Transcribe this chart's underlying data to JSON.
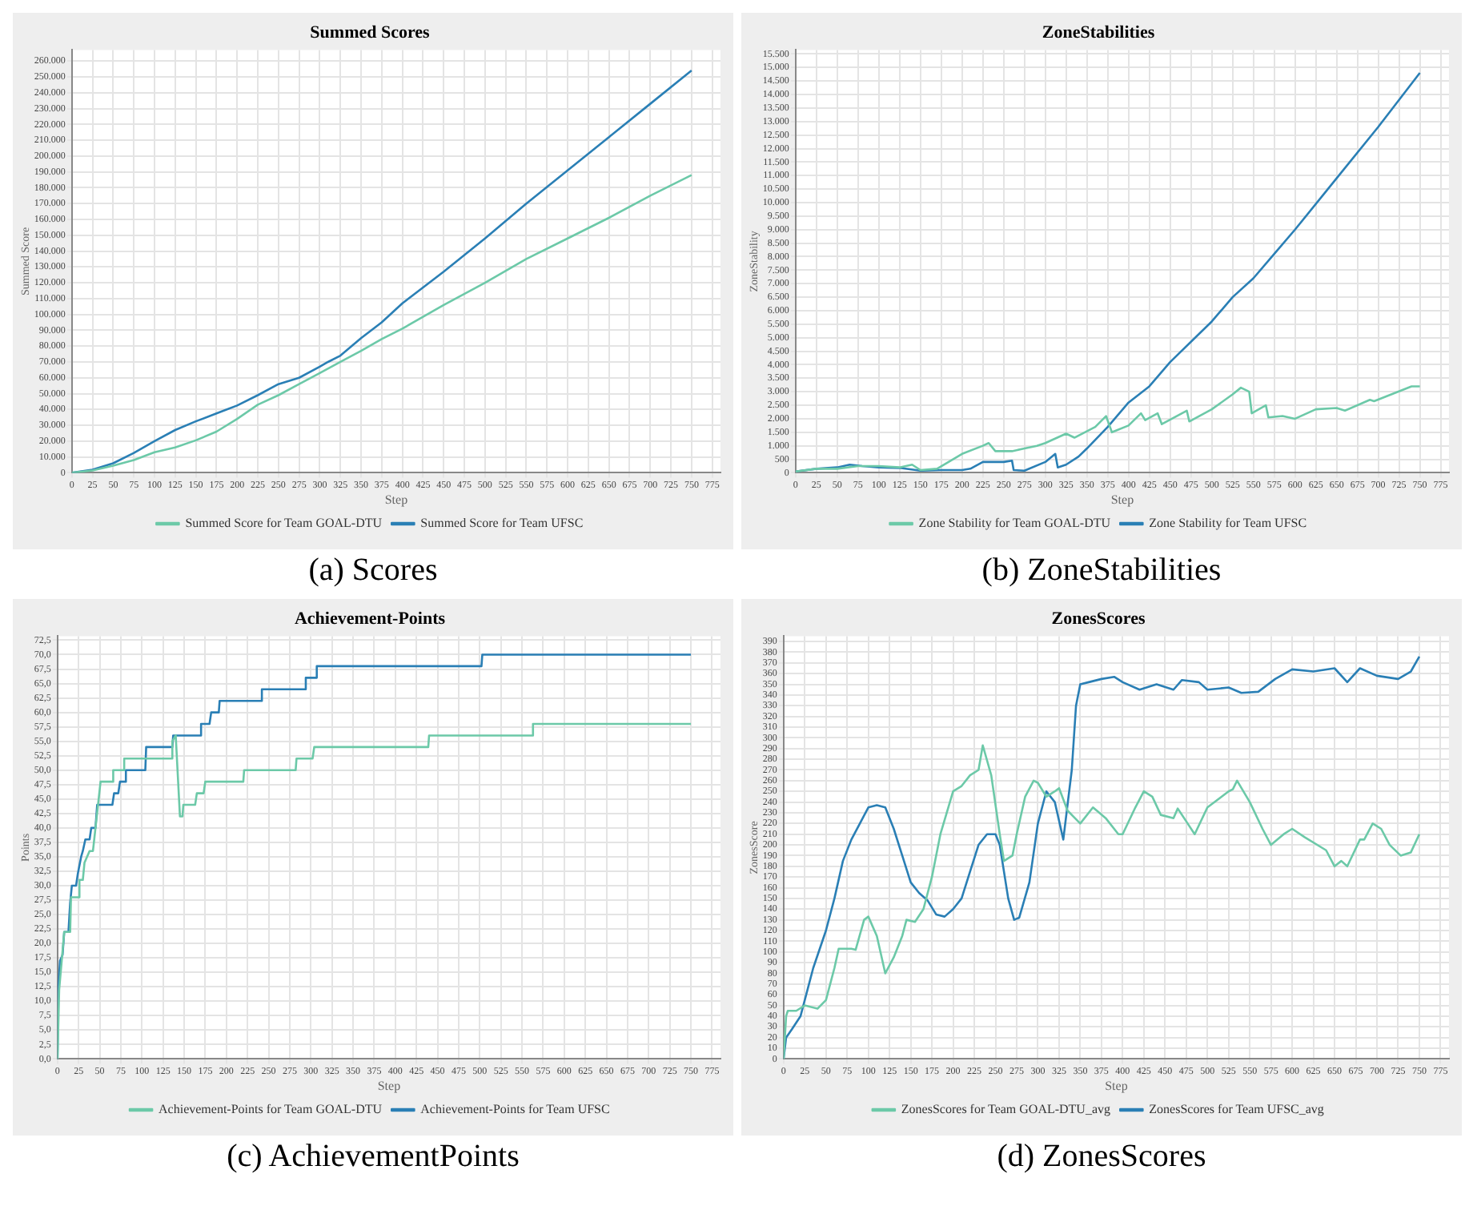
{
  "chart_data": [
    {
      "type": "line",
      "title": "Summed Scores",
      "xlabel": "Step",
      "ylabel": "Summed Score",
      "legend": "bottom",
      "grid": true,
      "annotations": [
        "(a) Scores"
      ],
      "xlim": [
        0,
        785
      ],
      "xticks": [
        0,
        25,
        50,
        75,
        100,
        125,
        150,
        175,
        200,
        225,
        250,
        275,
        300,
        325,
        350,
        375,
        400,
        425,
        450,
        475,
        500,
        525,
        550,
        575,
        600,
        625,
        650,
        675,
        700,
        725,
        750,
        775
      ],
      "ylim": [
        0,
        267000
      ],
      "yticks": [
        0,
        {
          "value": 10000,
          "label": "10.000"
        },
        {
          "value": 20000,
          "label": "20.000"
        },
        {
          "value": 30000,
          "label": "30.000"
        },
        {
          "value": 40000,
          "label": "40.000"
        },
        {
          "value": 50000,
          "label": "50.000"
        },
        {
          "value": 60000,
          "label": "60.000"
        },
        {
          "value": 70000,
          "label": "70.000"
        },
        {
          "value": 80000,
          "label": "80.000"
        },
        {
          "value": 90000,
          "label": "90.000"
        },
        {
          "value": 100000,
          "label": "100.000"
        },
        {
          "value": 110000,
          "label": "110.000"
        },
        {
          "value": 120000,
          "label": "120.000"
        },
        {
          "value": 130000,
          "label": "130.000"
        },
        {
          "value": 140000,
          "label": "140.000"
        },
        {
          "value": 150000,
          "label": "150.000"
        },
        {
          "value": 160000,
          "label": "160.000"
        },
        {
          "value": 170000,
          "label": "170.000"
        },
        {
          "value": 180000,
          "label": "180.000"
        },
        {
          "value": 190000,
          "label": "190.000"
        },
        {
          "value": 200000,
          "label": "200.000"
        },
        {
          "value": 210000,
          "label": "210.000"
        },
        {
          "value": 220000,
          "label": "220.000"
        },
        {
          "value": 230000,
          "label": "230.000"
        },
        {
          "value": 240000,
          "label": "240.000"
        },
        {
          "value": 250000,
          "label": "250.000"
        },
        {
          "value": 260000,
          "label": "260.000"
        }
      ],
      "series": [
        {
          "name": "Summed Score for Team GOAL-DTU",
          "color": "#6cc9a8",
          "x": [
            0,
            25,
            50,
            75,
            100,
            125,
            150,
            175,
            200,
            225,
            250,
            275,
            300,
            325,
            350,
            375,
            400,
            450,
            500,
            550,
            600,
            650,
            700,
            750
          ],
          "values": [
            0,
            1500,
            4500,
            8000,
            13000,
            16000,
            20500,
            26000,
            34000,
            43000,
            49000,
            56000,
            63000,
            70000,
            77000,
            84500,
            91000,
            106000,
            120000,
            135000,
            148000,
            161000,
            175000,
            188000
          ]
        },
        {
          "name": "Summed Score for Team UFSC",
          "color": "#2a7fb5",
          "x": [
            0,
            25,
            50,
            75,
            100,
            125,
            150,
            175,
            200,
            225,
            250,
            275,
            300,
            310,
            325,
            350,
            375,
            400,
            450,
            500,
            550,
            600,
            650,
            700,
            750
          ],
          "values": [
            0,
            2000,
            6000,
            12500,
            20000,
            27000,
            32500,
            37500,
            42500,
            49000,
            56000,
            60000,
            67000,
            70000,
            74000,
            85000,
            95000,
            107000,
            127000,
            148000,
            170000,
            191000,
            212000,
            233000,
            254000
          ]
        }
      ]
    },
    {
      "type": "line",
      "title": "ZoneStabilities",
      "xlabel": "Step",
      "ylabel": "ZoneStability",
      "legend": "bottom",
      "grid": true,
      "annotations": [
        "(b) ZoneStabilities"
      ],
      "xlim": [
        0,
        785
      ],
      "xticks": [
        0,
        25,
        50,
        75,
        100,
        125,
        150,
        175,
        200,
        225,
        250,
        275,
        300,
        325,
        350,
        375,
        400,
        425,
        450,
        475,
        500,
        525,
        550,
        575,
        600,
        625,
        650,
        675,
        700,
        725,
        750,
        775
      ],
      "ylim": [
        0,
        15650
      ],
      "yticks": [
        0,
        500,
        {
          "value": 1000,
          "label": "1.000"
        },
        {
          "value": 1500,
          "label": "1.500"
        },
        {
          "value": 2000,
          "label": "2.000"
        },
        {
          "value": 2500,
          "label": "2.500"
        },
        {
          "value": 3000,
          "label": "3.000"
        },
        {
          "value": 3500,
          "label": "3.500"
        },
        {
          "value": 4000,
          "label": "4.000"
        },
        {
          "value": 4500,
          "label": "4.500"
        },
        {
          "value": 5000,
          "label": "5.000"
        },
        {
          "value": 5500,
          "label": "5.500"
        },
        {
          "value": 6000,
          "label": "6.000"
        },
        {
          "value": 6500,
          "label": "6.500"
        },
        {
          "value": 7000,
          "label": "7.000"
        },
        {
          "value": 7500,
          "label": "7.500"
        },
        {
          "value": 8000,
          "label": "8.000"
        },
        {
          "value": 8500,
          "label": "8.500"
        },
        {
          "value": 9000,
          "label": "9.000"
        },
        {
          "value": 9500,
          "label": "9.500"
        },
        {
          "value": 10000,
          "label": "10.000"
        },
        {
          "value": 10500,
          "label": "10.500"
        },
        {
          "value": 11000,
          "label": "11.000"
        },
        {
          "value": 11500,
          "label": "11.500"
        },
        {
          "value": 12000,
          "label": "12.000"
        },
        {
          "value": 12500,
          "label": "12.500"
        },
        {
          "value": 13000,
          "label": "13.000"
        },
        {
          "value": 13500,
          "label": "13.500"
        },
        {
          "value": 14000,
          "label": "14.000"
        },
        {
          "value": 14500,
          "label": "14.500"
        },
        {
          "value": 15000,
          "label": "15.000"
        },
        {
          "value": 15500,
          "label": "15.500"
        }
      ],
      "series": [
        {
          "name": "Zone Stability for Team GOAL-DTU",
          "color": "#6cc9a8",
          "x": [
            0,
            25,
            50,
            75,
            100,
            125,
            140,
            150,
            170,
            200,
            225,
            232,
            240,
            260,
            275,
            290,
            300,
            325,
            335,
            360,
            373,
            380,
            400,
            415,
            420,
            435,
            440,
            470,
            473,
            500,
            525,
            535,
            545,
            548,
            565,
            568,
            585,
            600,
            625,
            650,
            660,
            690,
            695,
            740,
            750
          ],
          "values": [
            50,
            150,
            150,
            250,
            250,
            200,
            300,
            100,
            150,
            700,
            1000,
            1100,
            800,
            800,
            900,
            1000,
            1100,
            1450,
            1300,
            1700,
            2100,
            1500,
            1750,
            2200,
            1950,
            2200,
            1800,
            2300,
            1900,
            2350,
            2900,
            3150,
            3000,
            2200,
            2500,
            2050,
            2100,
            2000,
            2350,
            2400,
            2300,
            2700,
            2650,
            3200,
            3200
          ]
        },
        {
          "name": "Zone Stability for Team UFSC",
          "color": "#2a7fb5",
          "x": [
            0,
            25,
            50,
            65,
            80,
            100,
            125,
            150,
            175,
            200,
            210,
            225,
            250,
            260,
            262,
            275,
            300,
            312,
            315,
            325,
            340,
            350,
            375,
            400,
            425,
            450,
            500,
            525,
            550,
            575,
            600,
            650,
            700,
            750
          ],
          "values": [
            50,
            150,
            200,
            300,
            250,
            200,
            180,
            80,
            100,
            100,
            150,
            400,
            400,
            450,
            100,
            80,
            400,
            700,
            200,
            300,
            600,
            900,
            1700,
            2600,
            3200,
            4100,
            5600,
            6500,
            7200,
            8100,
            9000,
            10900,
            12800,
            14800
          ]
        }
      ]
    },
    {
      "type": "line",
      "title": "Achievement-Points",
      "xlabel": "Step",
      "ylabel": "Points",
      "legend": "bottom",
      "grid": true,
      "annotations": [
        "(c) AchievementPoints"
      ],
      "xlim": [
        0,
        785
      ],
      "xticks": [
        0,
        25,
        50,
        75,
        100,
        125,
        150,
        175,
        200,
        225,
        250,
        275,
        300,
        325,
        350,
        375,
        400,
        425,
        450,
        475,
        500,
        525,
        550,
        575,
        600,
        625,
        650,
        675,
        700,
        725,
        750,
        775
      ],
      "ylim": [
        0,
        73.2
      ],
      "yticks": [
        {
          "value": 0,
          "label": "0,0"
        },
        {
          "value": 2.5,
          "label": "2,5"
        },
        {
          "value": 5,
          "label": "5,0"
        },
        {
          "value": 7.5,
          "label": "7,5"
        },
        {
          "value": 10,
          "label": "10,0"
        },
        {
          "value": 12.5,
          "label": "12,5"
        },
        {
          "value": 15,
          "label": "15,0"
        },
        {
          "value": 17.5,
          "label": "17,5"
        },
        {
          "value": 20,
          "label": "20,0"
        },
        {
          "value": 22.5,
          "label": "22,5"
        },
        {
          "value": 25,
          "label": "25,0"
        },
        {
          "value": 27.5,
          "label": "27,5"
        },
        {
          "value": 30,
          "label": "30,0"
        },
        {
          "value": 32.5,
          "label": "32,5"
        },
        {
          "value": 35,
          "label": "35,0"
        },
        {
          "value": 37.5,
          "label": "37,5"
        },
        {
          "value": 40,
          "label": "40,0"
        },
        {
          "value": 42.5,
          "label": "42,5"
        },
        {
          "value": 45,
          "label": "45,0"
        },
        {
          "value": 47.5,
          "label": "47,5"
        },
        {
          "value": 50,
          "label": "50,0"
        },
        {
          "value": 52.5,
          "label": "52,5"
        },
        {
          "value": 55,
          "label": "55,0"
        },
        {
          "value": 57.5,
          "label": "57,5"
        },
        {
          "value": 60,
          "label": "60,0"
        },
        {
          "value": 62.5,
          "label": "62,5"
        },
        {
          "value": 65,
          "label": "65,0"
        },
        {
          "value": 67.5,
          "label": "67,5"
        },
        {
          "value": 70,
          "label": "70,0"
        },
        {
          "value": 72.5,
          "label": "72,5"
        }
      ],
      "series": [
        {
          "name": "Achievement-Points for Team GOAL-DTU",
          "color": "#6cc9a8",
          "x": [
            0,
            2,
            5,
            8,
            15,
            16,
            25,
            26,
            30,
            32,
            38,
            42,
            45,
            48,
            51,
            65,
            66,
            78,
            79,
            135,
            136,
            140,
            145,
            148,
            149,
            163,
            165,
            173,
            175,
            220,
            221,
            282,
            283,
            302,
            304,
            439,
            440,
            562,
            563,
            750
          ],
          "values": [
            0,
            12,
            17,
            22,
            22,
            28,
            28,
            31,
            31,
            34,
            36,
            36,
            40,
            44,
            48,
            48,
            50,
            50,
            52,
            52,
            55,
            56,
            42,
            42,
            44,
            44,
            46,
            46,
            48,
            48,
            50,
            50,
            52,
            52,
            54,
            54,
            56,
            56,
            58,
            58
          ]
        },
        {
          "name": "Achievement-Points for Team UFSC",
          "color": "#2a7fb5",
          "x": [
            0,
            1,
            3,
            6,
            8,
            13,
            15,
            17,
            22,
            24,
            28,
            30,
            33,
            38,
            40,
            45,
            47,
            65,
            67,
            72,
            74,
            80,
            81,
            104,
            105,
            136,
            137,
            169,
            170,
            180,
            182,
            191,
            192,
            241,
            242,
            293,
            294,
            306,
            307,
            502,
            503,
            750
          ],
          "values": [
            0,
            12,
            17,
            18,
            22,
            22,
            27,
            30,
            30,
            32,
            35,
            36,
            38,
            38,
            40,
            40,
            44,
            44,
            46,
            46,
            48,
            48,
            50,
            50,
            54,
            54,
            56,
            56,
            58,
            58,
            60,
            60,
            62,
            62,
            64,
            64,
            66,
            66,
            68,
            68,
            70,
            70
          ]
        }
      ]
    },
    {
      "type": "line",
      "title": "ZonesScores",
      "xlabel": "Step",
      "ylabel": "ZonesScore",
      "legend": "bottom",
      "grid": true,
      "annotations": [
        "(d) ZonesScores"
      ],
      "xlim": [
        0,
        785
      ],
      "xticks": [
        0,
        25,
        50,
        75,
        100,
        125,
        150,
        175,
        200,
        225,
        250,
        275,
        300,
        325,
        350,
        375,
        400,
        425,
        450,
        475,
        500,
        525,
        550,
        575,
        600,
        625,
        650,
        675,
        700,
        725,
        750,
        775
      ],
      "ylim": [
        0,
        395
      ],
      "yticks": [
        0,
        10,
        20,
        30,
        40,
        50,
        60,
        70,
        80,
        90,
        100,
        110,
        120,
        130,
        140,
        150,
        160,
        170,
        180,
        190,
        200,
        210,
        220,
        230,
        240,
        250,
        260,
        270,
        280,
        290,
        300,
        310,
        320,
        330,
        340,
        350,
        360,
        370,
        380,
        390
      ],
      "series": [
        {
          "name": "ZonesScores for Team GOAL-DTU_avg",
          "color": "#6cc9a8",
          "x": [
            0,
            3,
            5,
            15,
            25,
            40,
            50,
            60,
            65,
            80,
            85,
            95,
            100,
            110,
            120,
            130,
            140,
            145,
            155,
            165,
            175,
            185,
            200,
            210,
            220,
            230,
            235,
            245,
            255,
            260,
            270,
            275,
            285,
            295,
            300,
            310,
            320,
            325,
            335,
            350,
            365,
            380,
            395,
            400,
            415,
            425,
            435,
            445,
            460,
            465,
            475,
            485,
            500,
            525,
            530,
            535,
            550,
            565,
            575,
            590,
            600,
            615,
            640,
            650,
            658,
            665,
            680,
            685,
            695,
            705,
            715,
            728,
            740,
            750
          ],
          "values": [
            0,
            40,
            45,
            45,
            50,
            47,
            55,
            85,
            103,
            103,
            102,
            130,
            133,
            115,
            80,
            95,
            115,
            130,
            128,
            140,
            170,
            210,
            250,
            255,
            265,
            270,
            293,
            265,
            210,
            185,
            190,
            210,
            245,
            260,
            258,
            245,
            250,
            253,
            232,
            220,
            235,
            225,
            210,
            210,
            235,
            250,
            245,
            228,
            225,
            234,
            222,
            210,
            235,
            250,
            252,
            260,
            240,
            215,
            200,
            210,
            215,
            207,
            195,
            180,
            185,
            180,
            205,
            205,
            220,
            215,
            200,
            190,
            193,
            210
          ]
        },
        {
          "name": "ZonesScores for Team UFSC_avg",
          "color": "#2a7fb5",
          "x": [
            0,
            3,
            10,
            20,
            25,
            35,
            50,
            60,
            70,
            80,
            90,
            100,
            110,
            120,
            130,
            140,
            150,
            160,
            170,
            180,
            190,
            200,
            210,
            220,
            230,
            240,
            250,
            255,
            265,
            272,
            278,
            290,
            300,
            310,
            320,
            330,
            340,
            345,
            350,
            360,
            375,
            390,
            400,
            420,
            440,
            460,
            470,
            490,
            500,
            525,
            540,
            560,
            580,
            600,
            625,
            650,
            665,
            680,
            700,
            725,
            740,
            750
          ],
          "values": [
            0,
            20,
            28,
            40,
            55,
            85,
            120,
            150,
            185,
            205,
            220,
            235,
            237,
            235,
            215,
            190,
            165,
            155,
            148,
            135,
            133,
            140,
            150,
            175,
            200,
            210,
            210,
            200,
            150,
            130,
            132,
            165,
            220,
            250,
            240,
            205,
            270,
            330,
            350,
            352,
            355,
            357,
            352,
            345,
            350,
            345,
            354,
            352,
            345,
            347,
            342,
            343,
            355,
            364,
            362,
            365,
            352,
            365,
            358,
            355,
            362,
            376
          ]
        }
      ]
    }
  ]
}
